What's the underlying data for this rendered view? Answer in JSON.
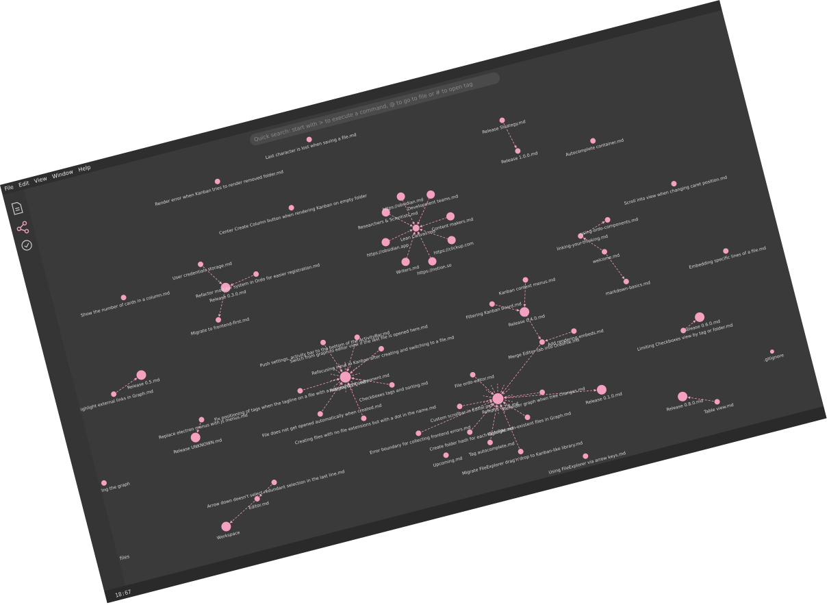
{
  "menu": [
    "File",
    "Edit",
    "View",
    "Window",
    "Help"
  ],
  "search": {
    "placeholder": "Quick search: start with > to execute a command, @ to go to file or # to open tag"
  },
  "status": {
    "time": "18:67"
  },
  "sidebar_label": "files",
  "graph": {
    "nodes": [
      {
        "label": "Last character is lost when saving a file.md"
      },
      {
        "label": "Release Strategy.md"
      },
      {
        "label": "Release 1.0.0.md"
      },
      {
        "label": "Autocomplete container.md"
      },
      {
        "label": "Render error when Kanban tries to render removed folder.md"
      },
      {
        "label": "Center Create Column button when rendering Kanban on empty folder"
      },
      {
        "label": "Scroll into view when changing caret position.md"
      },
      {
        "label": "Lean Canvas.md"
      },
      {
        "label": "Researchers & Scientists.md"
      },
      {
        "label": "Development teams.md"
      },
      {
        "label": "https://obsidian.md"
      },
      {
        "label": "Content makers.md"
      },
      {
        "label": "https://clickup.com"
      },
      {
        "label": "https://notion.so"
      },
      {
        "label": "Writers.md"
      },
      {
        "label": "https://obsidian.app"
      },
      {
        "label": "linking-your-thinking.md"
      },
      {
        "label": "using-ordo-components.md"
      },
      {
        "label": "welcome.md"
      },
      {
        "label": "markdown-basics.md"
      },
      {
        "label": "Embedding specific lines of a file.md"
      },
      {
        "label": "User credentials storage.md"
      },
      {
        "label": "Release 0.3.0.md"
      },
      {
        "label": "Refactor modular system in Ordo for easier registration.md"
      },
      {
        "label": "Migrate to frontend-first.md"
      },
      {
        "label": "Show the number of cards in a column.md"
      },
      {
        "label": "Kanban context menus.md"
      },
      {
        "label": "Release 0.4.0.md"
      },
      {
        "label": "Filtering Kanban board.md"
      },
      {
        "label": "Merge Editor tab into OrdoFile.md"
      },
      {
        "label": "Add rendering embeds.md"
      },
      {
        "label": "Release 0.6.0.md"
      },
      {
        "label": "Limiting Checkboxes view by tag or folder.md"
      },
      {
        "label": ".gitignore"
      },
      {
        "label": "Release 0.5.md"
      },
      {
        "label": "Highlight external links in Graph.md"
      },
      {
        "label": "Release 0.2.0.md"
      },
      {
        "label": "Push settings, activity bar to the bottom of the ActivityBar.md"
      },
      {
        "label": "Switch from graph to editor view if the last file is opened here.md"
      },
      {
        "label": "Refocusing input in Kanban after creating and switching to a file.md"
      },
      {
        "label": "Fix positioning of tags when the tagline on a file with a non-existent component.md"
      },
      {
        "label": "File does not get opened automatically when created.md"
      },
      {
        "label": "Creating files with no file extensions but with a dot in the name.md"
      },
      {
        "label": "Checkboxes tags and sorting.md"
      },
      {
        "label": "Release 0.7.0.md"
      },
      {
        "label": "File ordo-editor.md"
      },
      {
        "label": "Custom scrollbar in Editor.md"
      },
      {
        "label": "Create folder hash for each OrdoFile.md"
      },
      {
        "label": "Tag autocomplete.md"
      },
      {
        "label": "Highlight non-existent files in Graph.md"
      },
      {
        "label": "Rerender graph when tree changes.md"
      },
      {
        "label": "Migrate FileExplorer drag'n'drop to Kanban-like library.md"
      },
      {
        "label": "Release 0.1.0.md"
      },
      {
        "label": "Release 0.8.0.md"
      },
      {
        "label": "Table view.md"
      },
      {
        "label": "Release UNKNOWN.md"
      },
      {
        "label": "Replace electron menus with js menus.md"
      },
      {
        "label": "Arrow down doesn't select redundant selection in the last line.md"
      },
      {
        "label": "Editor.md"
      },
      {
        "label": "Workspace"
      },
      {
        "label": "n for sharing the graph"
      },
      {
        "label": "Upcoming.md"
      },
      {
        "label": "Using FileExplorer via arrow keys.md"
      },
      {
        "label": "Error boundary for collecting frontend errors.md"
      }
    ]
  }
}
